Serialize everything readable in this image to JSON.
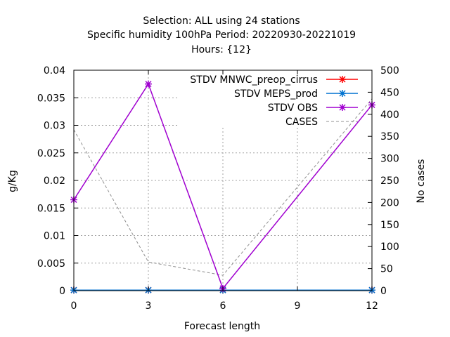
{
  "chart_data": {
    "type": "line",
    "title_lines": [
      "Selection: ALL using    24 stations",
      "Specific humidity 100hPa   Period: 20220930-20221019",
      "Hours: {12}"
    ],
    "xlabel": "Forecast length",
    "ylabel": "g/Kg",
    "y2label": "No cases",
    "x": [
      0,
      3,
      6,
      9,
      12
    ],
    "xlim": [
      0,
      12
    ],
    "ylim": [
      0,
      0.04
    ],
    "y2lim": [
      0,
      500
    ],
    "x_ticks": [
      "0",
      "3",
      "6",
      "9",
      "12"
    ],
    "y_ticks": [
      "0",
      "0.005",
      "0.01",
      "0.015",
      "0.02",
      "0.025",
      "0.03",
      "0.035",
      "0.04"
    ],
    "y2_ticks": [
      "0",
      "50",
      "100",
      "150",
      "200",
      "250",
      "300",
      "350",
      "400",
      "450",
      "500"
    ],
    "grid": true,
    "legend_position": "top-right",
    "series": [
      {
        "name": "STDV MNWC_preop_cirrus",
        "axis": "y",
        "color": "#ff0000",
        "x": [
          0,
          3,
          6,
          12
        ],
        "values": [
          0.0001,
          0.0001,
          0.0001,
          0.0001
        ]
      },
      {
        "name": "STDV MEPS_prod",
        "axis": "y",
        "color": "#0072d0",
        "x": [
          0,
          3,
          6,
          12
        ],
        "values": [
          0.0001,
          0.0001,
          0.0001,
          0.0001
        ]
      },
      {
        "name": "STDV OBS",
        "axis": "y",
        "color": "#a000d0",
        "x": [
          0,
          3,
          6,
          12
        ],
        "values": [
          0.0165,
          0.0375,
          0.0004,
          0.0337
        ]
      },
      {
        "name": "CASES",
        "axis": "y2",
        "color": "#909090",
        "dashed": true,
        "x": [
          0,
          3,
          6,
          12
        ],
        "values": [
          365,
          65,
          35,
          435
        ]
      }
    ]
  }
}
